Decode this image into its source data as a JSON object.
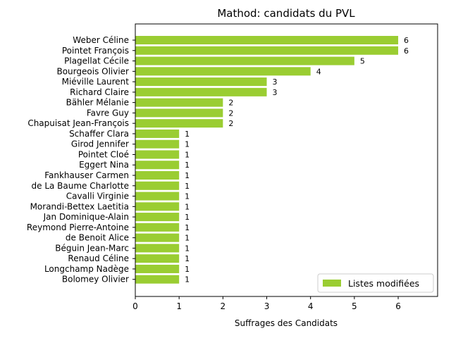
{
  "chart_data": {
    "type": "bar",
    "orientation": "horizontal",
    "title": "Mathod: candidats du PVL",
    "xlabel": "Suffrages des Candidats",
    "ylabel": "",
    "xlim": [
      0,
      6.9
    ],
    "xticks": [
      0,
      1,
      2,
      3,
      4,
      5,
      6
    ],
    "grid": false,
    "legend_position": "lower-right",
    "bar_color": "#9acd32",
    "categories": [
      "Weber Céline",
      "Pointet François",
      "Plagellat Cécile",
      "Bourgeois Olivier",
      "Miéville Laurent",
      "Richard Claire",
      "Bähler Mélanie",
      "Favre Guy",
      "Chapuisat Jean-François",
      "Schaffer Clara",
      "Girod Jennifer",
      "Pointet Cloé",
      "Eggert Nina",
      "Fankhauser Carmen",
      "de La Baume Charlotte",
      "Cavalli Virginie",
      "Morandi-Bettex Laetitia",
      "Jan Dominique-Alain",
      "Reymond Pierre-Antoine",
      "de Benoit Alice",
      "Béguin Jean-Marc",
      "Renaud Céline",
      "Longchamp Nadège",
      "Bolomey Olivier"
    ],
    "series": [
      {
        "name": "Listes modifiées",
        "values": [
          6,
          6,
          5,
          4,
          3,
          3,
          2,
          2,
          2,
          1,
          1,
          1,
          1,
          1,
          1,
          1,
          1,
          1,
          1,
          1,
          1,
          1,
          1,
          1
        ]
      }
    ]
  }
}
